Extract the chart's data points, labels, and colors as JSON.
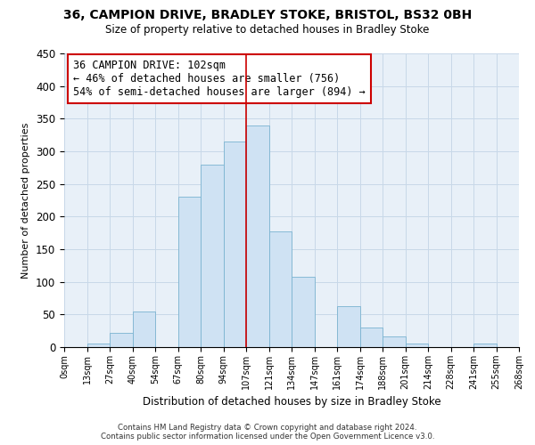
{
  "title": "36, CAMPION DRIVE, BRADLEY STOKE, BRISTOL, BS32 0BH",
  "subtitle": "Size of property relative to detached houses in Bradley Stoke",
  "xlabel": "Distribution of detached houses by size in Bradley Stoke",
  "ylabel": "Number of detached properties",
  "bar_color": "#cfe2f3",
  "bar_edge_color": "#7ab3d0",
  "grid_color": "#c8d8e8",
  "bg_color": "#e8f0f8",
  "vline_x": 8,
  "vline_color": "#cc0000",
  "annotation_title": "36 CAMPION DRIVE: 102sqm",
  "annotation_line1": "← 46% of detached houses are smaller (756)",
  "annotation_line2": "54% of semi-detached houses are larger (894) →",
  "annotation_box_edge": "#cc0000",
  "footer1": "Contains HM Land Registry data © Crown copyright and database right 2024.",
  "footer2": "Contains public sector information licensed under the Open Government Licence v3.0.",
  "bin_labels": [
    "0sqm",
    "13sqm",
    "27sqm",
    "40sqm",
    "54sqm",
    "67sqm",
    "80sqm",
    "94sqm",
    "107sqm",
    "121sqm",
    "134sqm",
    "147sqm",
    "161sqm",
    "174sqm",
    "188sqm",
    "201sqm",
    "214sqm",
    "228sqm",
    "241sqm",
    "255sqm",
    "268sqm"
  ],
  "counts": [
    0,
    6,
    22,
    54,
    0,
    230,
    280,
    315,
    340,
    177,
    108,
    0,
    63,
    30,
    17,
    6,
    0,
    0,
    5,
    0
  ],
  "ylim": [
    0,
    450
  ],
  "yticks": [
    0,
    50,
    100,
    150,
    200,
    250,
    300,
    350,
    400,
    450
  ]
}
